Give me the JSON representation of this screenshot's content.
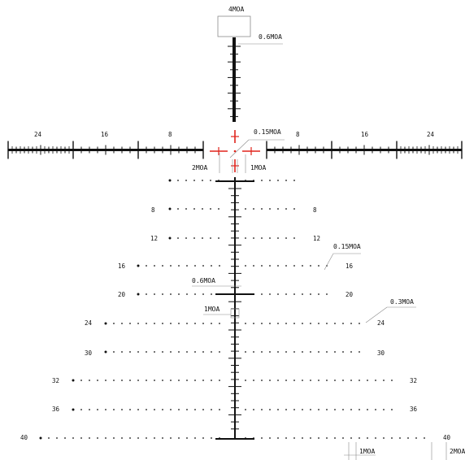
{
  "reticle": {
    "colors": {
      "line": "#111111",
      "center": "#e0231b",
      "leader": "#8a8a8a"
    },
    "top_labels": {
      "box": "4MOA",
      "post": "0.6MOA"
    },
    "center_labels": {
      "center_dot": "0.15MOA",
      "left_gap": "2MOA",
      "right_gap": "1MOA"
    },
    "horizontal_scale": {
      "left": [
        "24",
        "16",
        "8"
      ],
      "right": [
        "8",
        "16",
        "24"
      ]
    },
    "dot_rows": {
      "left": [
        "8",
        "12",
        "16",
        "20",
        "24",
        "30",
        "32",
        "36",
        "40"
      ],
      "right": [
        "8",
        "12",
        "16",
        "20",
        "24",
        "30",
        "32",
        "36",
        "40"
      ]
    },
    "callouts": {
      "dot_size": "0.15MOA",
      "post_width": "0.6MOA",
      "post_box": "1MOA",
      "dot_size_large": "0.3MOA",
      "bottom_gap": "1MOA",
      "bottom_right": "2MOA"
    }
  }
}
